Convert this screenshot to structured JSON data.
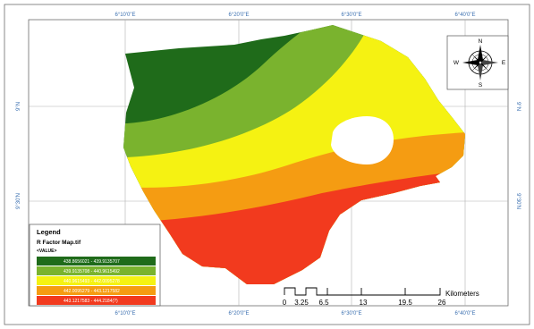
{
  "map": {
    "top_ticks": [
      "6°10'0\"E",
      "6°20'0\"E",
      "6°30'0\"E",
      "6°40'0\"E"
    ],
    "bottom_ticks": [
      "6°10'0\"E",
      "6°20'0\"E",
      "6°30'0\"E",
      "6°40'0\"E"
    ],
    "left_ticks": [
      "9°N",
      "9°30'N"
    ],
    "right_ticks": [
      "9°N",
      "9°30'N"
    ],
    "colors": {
      "dark_green": "#1f6b1a",
      "light_green": "#7ab32e",
      "yellow": "#f5f212",
      "orange": "#f59c12",
      "red": "#f23a1e",
      "frame": "#6b6b6b",
      "tick_text": "#3a6fb0"
    }
  },
  "legend": {
    "title": "Legend",
    "layer": "R Factor Map.tif",
    "field": "<VALUE>",
    "classes": [
      {
        "label": "438.8656021 - 439.9135707",
        "color": "#1f6b1a"
      },
      {
        "label": "439.9135708 - 440.9615492",
        "color": "#7ab32e"
      },
      {
        "label": "440.9615493 - 442.0095278",
        "color": "#f5f212"
      },
      {
        "label": "442.0095279 - 443.1217582",
        "color": "#f59c12"
      },
      {
        "label": "443.1217583 - 444.2184(?)",
        "color": "#f23a1e"
      }
    ]
  },
  "scale_bar": {
    "labels": [
      "0",
      "3.25",
      "6.5",
      "13",
      "19.5",
      "26"
    ],
    "unit": "Kilometers"
  },
  "north_arrow": {
    "icon": "compass-rose-icon",
    "letters": {
      "n": "N",
      "s": "S",
      "e": "E",
      "w": "W"
    }
  }
}
